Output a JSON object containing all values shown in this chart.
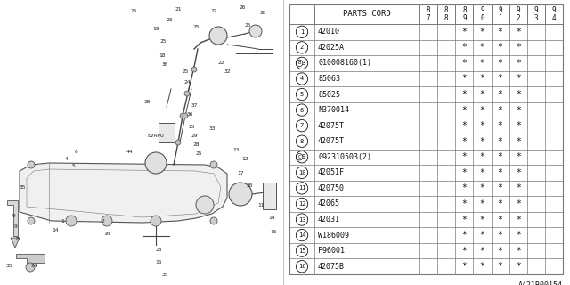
{
  "bg_color": "#ffffff",
  "table": {
    "header_col0": "",
    "header_col1": "PARTS CORD",
    "year_cols": [
      "8\n7",
      "8\n8",
      "8\n9",
      "9\n0",
      "9\n1",
      "9\n2",
      "9\n3",
      "9\n4"
    ],
    "rows": [
      {
        "num": "1",
        "part": "42010",
        "stars": [
          false,
          false,
          true,
          true,
          true,
          true,
          false,
          false
        ]
      },
      {
        "num": "2",
        "part": "42025A",
        "stars": [
          false,
          false,
          true,
          true,
          true,
          true,
          false,
          false
        ]
      },
      {
        "num": "3",
        "part": "010008160(1)",
        "stars": [
          false,
          false,
          true,
          true,
          true,
          true,
          false,
          false
        ],
        "prefix": "B"
      },
      {
        "num": "4",
        "part": "85063",
        "stars": [
          false,
          false,
          true,
          true,
          true,
          true,
          false,
          false
        ]
      },
      {
        "num": "5",
        "part": "85025",
        "stars": [
          false,
          false,
          true,
          true,
          true,
          true,
          false,
          false
        ]
      },
      {
        "num": "6",
        "part": "N370014",
        "stars": [
          false,
          false,
          true,
          true,
          true,
          true,
          false,
          false
        ]
      },
      {
        "num": "7",
        "part": "42075T",
        "stars": [
          false,
          false,
          true,
          true,
          true,
          true,
          false,
          false
        ]
      },
      {
        "num": "8",
        "part": "42075T",
        "stars": [
          false,
          false,
          true,
          true,
          true,
          true,
          false,
          false
        ]
      },
      {
        "num": "9",
        "part": "092310503(2)",
        "stars": [
          false,
          false,
          true,
          true,
          true,
          true,
          false,
          false
        ],
        "prefix": "C"
      },
      {
        "num": "10",
        "part": "42051F",
        "stars": [
          false,
          false,
          true,
          true,
          true,
          true,
          false,
          false
        ]
      },
      {
        "num": "11",
        "part": "420750",
        "stars": [
          false,
          false,
          true,
          true,
          true,
          true,
          false,
          false
        ]
      },
      {
        "num": "12",
        "part": "42065",
        "stars": [
          false,
          false,
          true,
          true,
          true,
          true,
          false,
          false
        ]
      },
      {
        "num": "13",
        "part": "42031",
        "stars": [
          false,
          false,
          true,
          true,
          true,
          true,
          false,
          false
        ]
      },
      {
        "num": "14",
        "part": "W186009",
        "stars": [
          false,
          false,
          true,
          true,
          true,
          true,
          false,
          false
        ]
      },
      {
        "num": "15",
        "part": "F96001",
        "stars": [
          false,
          false,
          true,
          true,
          true,
          true,
          false,
          false
        ]
      },
      {
        "num": "16",
        "part": "42075B",
        "stars": [
          false,
          false,
          true,
          true,
          true,
          true,
          false,
          false
        ]
      }
    ]
  },
  "footer_code": "A421B00154",
  "line_color": "#777777",
  "text_color": "#111111",
  "star": "*"
}
